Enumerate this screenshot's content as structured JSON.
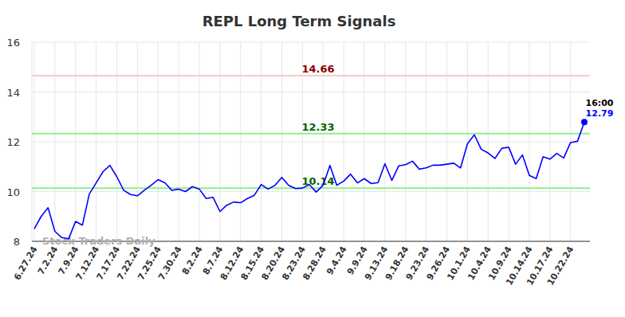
{
  "chart_data": {
    "type": "line",
    "title": "REPL Long Term Signals",
    "watermark": "Stock Traders Daily",
    "last_label": "16:00",
    "color": "#0000ff",
    "marker": "last",
    "grid": true,
    "ylim": [
      8,
      16
    ],
    "yticks": [
      8,
      10,
      12,
      14,
      16
    ],
    "reference_lines": [
      {
        "value": 14.66,
        "color": "#f4cccc"
      },
      {
        "value": 12.33,
        "color": "#90ee90"
      },
      {
        "value": 10.14,
        "color": "#90ee90"
      }
    ],
    "categories": [
      "6.27.24",
      null,
      null,
      "7.2.24",
      null,
      null,
      "7.9.24",
      null,
      null,
      "7.12.24",
      null,
      null,
      "7.17.24",
      null,
      null,
      "7.22.24",
      null,
      null,
      "7.25.24",
      null,
      null,
      "7.30.24",
      null,
      null,
      "8.2.24",
      null,
      null,
      "8.7.24",
      null,
      null,
      "8.12.24",
      null,
      null,
      "8.15.24",
      null,
      null,
      "8.20.24",
      null,
      null,
      "8.23.24",
      null,
      null,
      "8.28.24",
      null,
      null,
      "9.4.24",
      null,
      null,
      "9.9.24",
      null,
      null,
      "9.13.24",
      null,
      null,
      "9.18.24",
      null,
      null,
      "9.23.24",
      null,
      null,
      "9.26.24",
      null,
      null,
      "10.1.24",
      null,
      null,
      "10.4.24",
      null,
      null,
      "10.9.24",
      null,
      null,
      "10.14.24",
      null,
      null,
      "10.17.24",
      null,
      null,
      "10.22.24",
      null,
      null
    ],
    "values": [
      8.5,
      9.0,
      9.35,
      8.4,
      8.15,
      8.1,
      8.8,
      8.65,
      9.9,
      10.35,
      10.8,
      11.05,
      10.6,
      10.05,
      9.88,
      9.83,
      10.05,
      10.25,
      10.48,
      10.35,
      10.05,
      10.1,
      10.0,
      10.2,
      10.1,
      9.72,
      9.77,
      9.2,
      9.45,
      9.58,
      9.55,
      9.72,
      9.85,
      10.28,
      10.1,
      10.25,
      10.57,
      10.25,
      10.12,
      10.14,
      10.28,
      9.98,
      10.25,
      11.05,
      10.25,
      10.42,
      10.7,
      10.35,
      10.52,
      10.32,
      10.36,
      11.12,
      10.45,
      11.03,
      11.08,
      11.22,
      10.9,
      10.95,
      11.06,
      11.06,
      11.1,
      11.14,
      10.95,
      11.92,
      12.28,
      11.7,
      11.55,
      11.33,
      11.74,
      11.78,
      11.1,
      11.47,
      10.65,
      10.52,
      11.4,
      11.3,
      11.53,
      11.35,
      11.97,
      12.02,
      12.79
    ]
  }
}
